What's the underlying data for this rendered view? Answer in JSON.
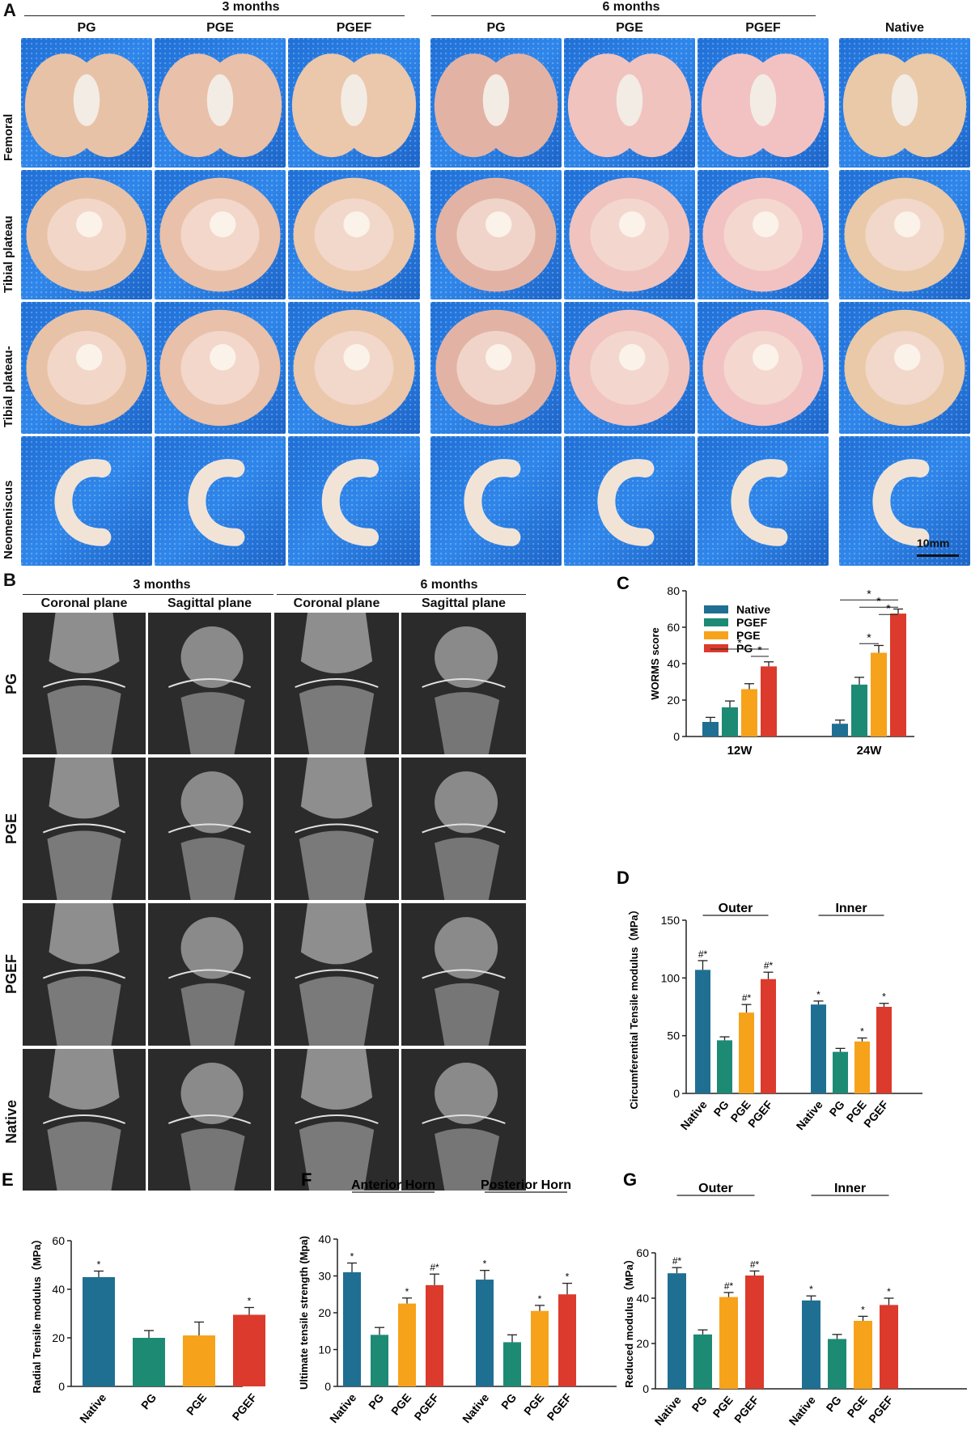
{
  "panel_a": {
    "letter": "A",
    "group_3m": "3 months",
    "group_6m": "6 months",
    "columns": [
      "PG",
      "PGE",
      "PGEF",
      "PG",
      "PGE",
      "PGEF",
      "Native"
    ],
    "rows": [
      "Femoral",
      "Tibial plateau",
      "Tibial plateau-",
      "Neomeniscus"
    ],
    "scale_label": "10mm"
  },
  "panel_b": {
    "letter": "B",
    "group_3m": "3 months",
    "group_6m": "6 months",
    "columns": [
      "Coronal plane",
      "Sagittal plane",
      "Coronal plane",
      "Sagittal plane"
    ],
    "rows": [
      "PG",
      "PGE",
      "PGEF",
      "Native"
    ]
  },
  "colors": {
    "Native": "#1f6f93",
    "PGEF": "#1d8a74",
    "PGE": "#f7a21b",
    "PG": "#dc3a2c",
    "photo_bg": "#2f86ea"
  },
  "chart_data": [
    {
      "id": "C",
      "type": "bar",
      "letter": "C",
      "categories": [
        "12W",
        "24W"
      ],
      "series": [
        {
          "name": "Native",
          "values": [
            8,
            7
          ],
          "errors": [
            2.5,
            2
          ]
        },
        {
          "name": "PGEF",
          "values": [
            16,
            28.5
          ],
          "errors": [
            3.5,
            4
          ]
        },
        {
          "name": "PGE",
          "values": [
            26,
            46
          ],
          "errors": [
            3,
            4
          ]
        },
        {
          "name": "PG",
          "values": [
            38.5,
            67.5
          ],
          "errors": [
            2.5,
            2.5
          ]
        }
      ],
      "ylabel": "WORMS score",
      "ylim": [
        0,
        80
      ],
      "yticks": [
        0,
        20,
        40,
        60,
        80
      ],
      "legend": "top-left",
      "significance": "*"
    },
    {
      "id": "D",
      "type": "bar",
      "letter": "D",
      "groups": [
        "Outer",
        "Inner"
      ],
      "categories": [
        "Native",
        "PG",
        "PGE",
        "PGEF"
      ],
      "series": [
        {
          "group": "Outer",
          "values": [
            107,
            46,
            70,
            99
          ],
          "errors": [
            8,
            3,
            7,
            6
          ],
          "marks": [
            "#*",
            "",
            "#*",
            "#*"
          ]
        },
        {
          "group": "Inner",
          "values": [
            77,
            36,
            45,
            75
          ],
          "errors": [
            3,
            3,
            3,
            3
          ],
          "marks": [
            "*",
            "",
            "*",
            "*"
          ]
        }
      ],
      "ylabel": "Circumferential Tensile modulus（MPa）",
      "ylim": [
        0,
        150
      ],
      "yticks": [
        0,
        50,
        100,
        150
      ]
    },
    {
      "id": "E",
      "type": "bar",
      "letter": "E",
      "categories": [
        "Native",
        "PG",
        "PGE",
        "PGEF"
      ],
      "values": [
        45,
        20,
        21,
        29.5
      ],
      "errors": [
        2.5,
        3,
        5.5,
        3
      ],
      "marks": [
        "*",
        "",
        "",
        "*"
      ],
      "ylabel": "Radial Tensile modulus（MPa）",
      "ylim": [
        0,
        60
      ],
      "yticks": [
        0,
        20,
        40,
        60
      ]
    },
    {
      "id": "F",
      "type": "bar",
      "letter": "F",
      "groups": [
        "Anterior Horn",
        "Posterior Horn"
      ],
      "categories": [
        "Native",
        "PG",
        "PGE",
        "PGEF"
      ],
      "series": [
        {
          "group": "Anterior Horn",
          "values": [
            31,
            14,
            22.5,
            27.5
          ],
          "errors": [
            2.5,
            2,
            1.5,
            3
          ],
          "marks": [
            "*",
            "",
            "*",
            "#*"
          ]
        },
        {
          "group": "Posterior Horn",
          "values": [
            29,
            12,
            20.5,
            25
          ],
          "errors": [
            2.5,
            2,
            1.5,
            3
          ],
          "marks": [
            "*",
            "",
            "*",
            "*"
          ]
        }
      ],
      "ylabel": "Ultimate tensile strength (Mpa)",
      "ylim": [
        0,
        40
      ],
      "yticks": [
        0,
        10,
        20,
        30,
        40
      ]
    },
    {
      "id": "G",
      "type": "bar",
      "letter": "G",
      "groups": [
        "Outer",
        "Inner"
      ],
      "categories": [
        "Native",
        "PG",
        "PGE",
        "PGEF"
      ],
      "series": [
        {
          "group": "Outer",
          "values": [
            51,
            24,
            40.5,
            50
          ],
          "errors": [
            2.5,
            2,
            2,
            2
          ],
          "marks": [
            "#*",
            "",
            "#*",
            "#*"
          ]
        },
        {
          "group": "Inner",
          "values": [
            39,
            22,
            30,
            37
          ],
          "errors": [
            2,
            2,
            2,
            3
          ],
          "marks": [
            "*",
            "",
            "*",
            "*"
          ]
        }
      ],
      "ylabel": "Reduced modulus（MPa）",
      "ylim": [
        0,
        60
      ],
      "yticks": [
        0,
        20,
        40,
        60
      ]
    }
  ]
}
